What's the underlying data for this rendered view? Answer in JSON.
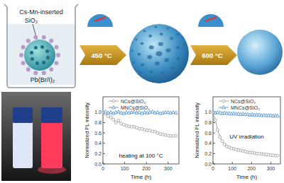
{
  "diagram": {
    "label": "Cs-Mn-inserted",
    "label_sub": "SiO₂",
    "precursor": "Pb(Br/I)₂",
    "steps": [
      "450 °C",
      "600 °C"
    ]
  },
  "chart_data": [
    {
      "type": "line",
      "annotation": "heating at 100 °C",
      "xlabel": "Time (h)",
      "ylabel": "Normalized PL intensity",
      "x": [
        0,
        12,
        24,
        36,
        48,
        60,
        72,
        84,
        96,
        108,
        120,
        132,
        144,
        156,
        168,
        180,
        192,
        204,
        216,
        228,
        240,
        252,
        264,
        276,
        288,
        300,
        312,
        324,
        336
      ],
      "series": [
        {
          "name": "NCs@SiO₂",
          "color": "#9a9a9a",
          "marker": "circle",
          "line_style": "solid",
          "values": [
            1.0,
            0.97,
            0.92,
            0.9,
            0.86,
            0.8,
            0.84,
            0.78,
            0.76,
            0.74,
            0.73,
            0.72,
            0.72,
            0.7,
            0.68,
            0.68,
            0.66,
            0.65,
            0.65,
            0.63,
            0.63,
            0.6,
            0.58,
            0.57,
            0.56,
            0.55,
            0.54,
            0.54,
            0.55
          ]
        },
        {
          "name": "MNCs@SiO₂",
          "color": "#4a8fd0",
          "marker": "triangle",
          "line_style": "solid",
          "values": [
            1.0,
            1.01,
            0.99,
            1.0,
            0.98,
            1.0,
            1.01,
            0.99,
            0.98,
            1.0,
            0.99,
            1.0,
            1.01,
            0.99,
            1.0,
            0.98,
            1.0,
            0.99,
            1.0,
            1.01,
            0.99,
            1.0,
            0.98,
            0.99,
            1.0,
            1.0,
            0.99,
            1.0,
            0.99
          ]
        }
      ],
      "xlim": [
        0,
        350
      ],
      "ylim": [
        0,
        1.3
      ],
      "xticks": [
        0,
        100,
        200,
        300
      ],
      "yticks": [
        {
          "value": 0,
          "label": "0.0"
        },
        0.2,
        0.4,
        0.6,
        0.8,
        {
          "value": 1,
          "label": "1.0"
        }
      ],
      "legend": "upper center"
    },
    {
      "type": "line",
      "annotation": "UV irradiation",
      "xlabel": "Time (h)",
      "ylabel": "Normalized PL intensity",
      "x": [
        0,
        12,
        24,
        36,
        48,
        60,
        72,
        84,
        96,
        108,
        120,
        132,
        144,
        156,
        168,
        180,
        192,
        204,
        216,
        228,
        240,
        252,
        264,
        276,
        288,
        300,
        312,
        324,
        336
      ],
      "series": [
        {
          "name": "NCs@SiO₂",
          "color": "#9a9a9a",
          "marker": "circle",
          "line_style": "solid",
          "values": [
            1.0,
            0.85,
            0.66,
            0.52,
            0.44,
            0.38,
            0.34,
            0.32,
            0.3,
            0.29,
            0.28,
            0.27,
            0.26,
            0.25,
            0.24,
            0.23,
            0.22,
            0.22,
            0.21,
            0.2,
            0.2,
            0.19,
            0.19,
            0.18,
            0.18,
            0.17,
            0.17,
            0.16,
            0.16
          ]
        },
        {
          "name": "MNCs@SiO₂",
          "color": "#4a8fd0",
          "marker": "triangle",
          "line_style": "solid",
          "values": [
            1.0,
            0.99,
            1.0,
            0.99,
            0.98,
            0.99,
            0.98,
            0.98,
            0.97,
            0.98,
            0.97,
            0.97,
            0.96,
            0.97,
            0.96,
            0.96,
            0.95,
            0.96,
            0.95,
            0.95,
            0.95,
            0.94,
            0.95,
            0.94,
            0.94,
            0.94,
            0.93,
            0.94,
            0.93
          ]
        }
      ],
      "xlim": [
        0,
        350
      ],
      "ylim": [
        0,
        1.3
      ],
      "xticks": [
        0,
        100,
        200,
        300
      ],
      "yticks": [
        {
          "value": 0,
          "label": "0.0"
        },
        0.2,
        0.4,
        0.6,
        0.8,
        {
          "value": 1,
          "label": "1.0"
        }
      ],
      "legend": "upper center"
    }
  ]
}
